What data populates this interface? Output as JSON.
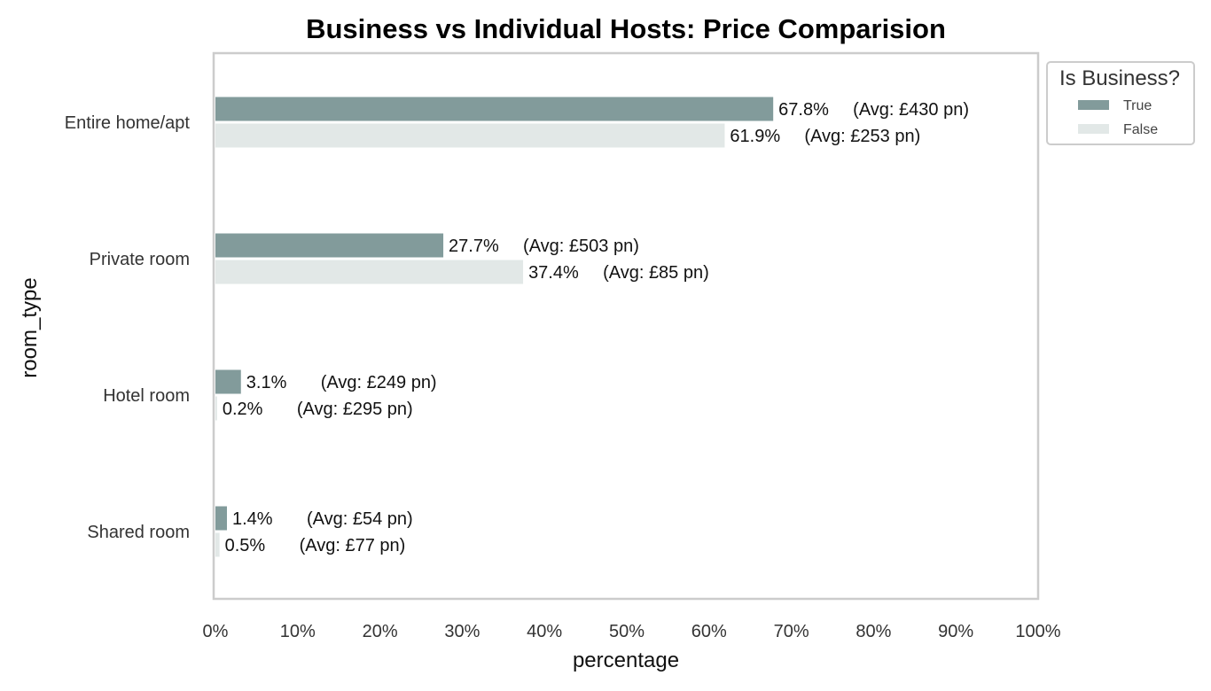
{
  "chart_data": {
    "type": "bar",
    "orientation": "horizontal",
    "title": "Business vs Individual Hosts: Price Comparision",
    "xlabel": "percentage",
    "ylabel": "room_type",
    "xlim": [
      0,
      100
    ],
    "xticks": [
      "0%",
      "10%",
      "20%",
      "30%",
      "40%",
      "50%",
      "60%",
      "70%",
      "80%",
      "90%",
      "100%"
    ],
    "grid": false,
    "legend_position": "outside-top-right",
    "legend_title": "Is Business?",
    "categories": [
      "Entire home/apt",
      "Private room",
      "Hotel room",
      "Shared room"
    ],
    "series": [
      {
        "name": "True",
        "color": "#829b9b",
        "values": [
          67.8,
          27.7,
          3.1,
          1.4
        ],
        "labels": [
          "67.8%",
          "27.7%",
          "3.1%",
          "1.4%"
        ],
        "avg_labels": [
          "(Avg: £430 pn)",
          "(Avg: £503 pn)",
          "(Avg: £249 pn)",
          "(Avg: £54 pn)"
        ]
      },
      {
        "name": "False",
        "color": "#e2e8e7",
        "values": [
          61.9,
          37.4,
          0.2,
          0.5
        ],
        "labels": [
          "61.9%",
          "37.4%",
          "0.2%",
          "0.5%"
        ],
        "avg_labels": [
          "(Avg: £253 pn)",
          "(Avg: £85 pn)",
          "(Avg: £295 pn)",
          "(Avg: £77 pn)"
        ]
      }
    ]
  }
}
